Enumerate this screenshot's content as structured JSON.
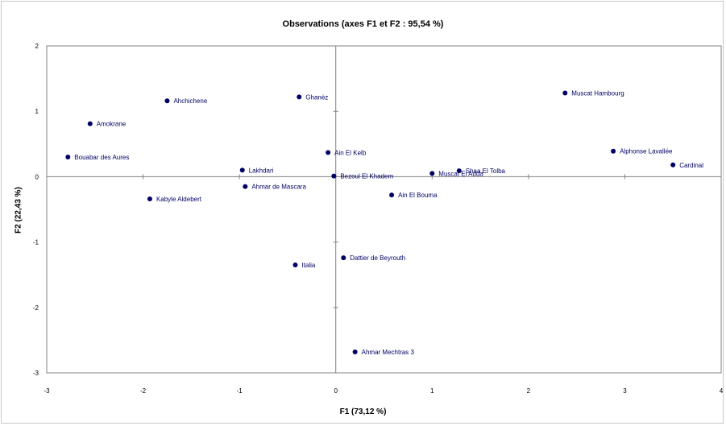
{
  "chart_data": {
    "type": "scatter",
    "title": "Observations (axes F1 et F2 : 95,54 %)",
    "xlabel": "F1 (73,12 %)",
    "ylabel": "F2 (22,43 %)",
    "xlim": [
      -3,
      4
    ],
    "ylim": [
      -3,
      2
    ],
    "xticks": [
      "-3",
      "-2",
      "-1",
      "0",
      "1",
      "2",
      "3",
      "4"
    ],
    "yticks": [
      "2",
      "1",
      "0",
      "-1",
      "-2",
      "-3"
    ],
    "grid": false,
    "point_color": "#000066",
    "points": [
      {
        "label": "Muscat Hambourg",
        "x": 2.38,
        "y": 1.28
      },
      {
        "label": "Ghanèz",
        "x": -0.38,
        "y": 1.22
      },
      {
        "label": "Ahchichene",
        "x": -1.75,
        "y": 1.16
      },
      {
        "label": "Amokrane",
        "x": -2.55,
        "y": 0.81
      },
      {
        "label": "Alphonse Lavallée",
        "x": 2.88,
        "y": 0.39
      },
      {
        "label": "Ain El Kelb",
        "x": -0.08,
        "y": 0.37
      },
      {
        "label": "Bouabar des Aures",
        "x": -2.78,
        "y": 0.3
      },
      {
        "label": "Cardinal",
        "x": 3.5,
        "y": 0.18
      },
      {
        "label": "Lakhdari",
        "x": -0.97,
        "y": 0.1
      },
      {
        "label": "Shaa El Tolba",
        "x": 1.28,
        "y": 0.09
      },
      {
        "label": "Muscat El Adda",
        "x": 1.0,
        "y": 0.05
      },
      {
        "label": "Bezoul El Khadem",
        "x": -0.02,
        "y": 0.01
      },
      {
        "label": "Ahmar de Mascara",
        "x": -0.94,
        "y": -0.15
      },
      {
        "label": "Ain El Bouma",
        "x": 0.58,
        "y": -0.28
      },
      {
        "label": "Kabyle Aldebert",
        "x": -1.93,
        "y": -0.34
      },
      {
        "label": "Dattier de Beyrouth",
        "x": 0.08,
        "y": -1.24
      },
      {
        "label": "Italia",
        "x": -0.42,
        "y": -1.35
      },
      {
        "label": "Ahmar Mechtras 3",
        "x": 0.2,
        "y": -2.68
      }
    ]
  }
}
